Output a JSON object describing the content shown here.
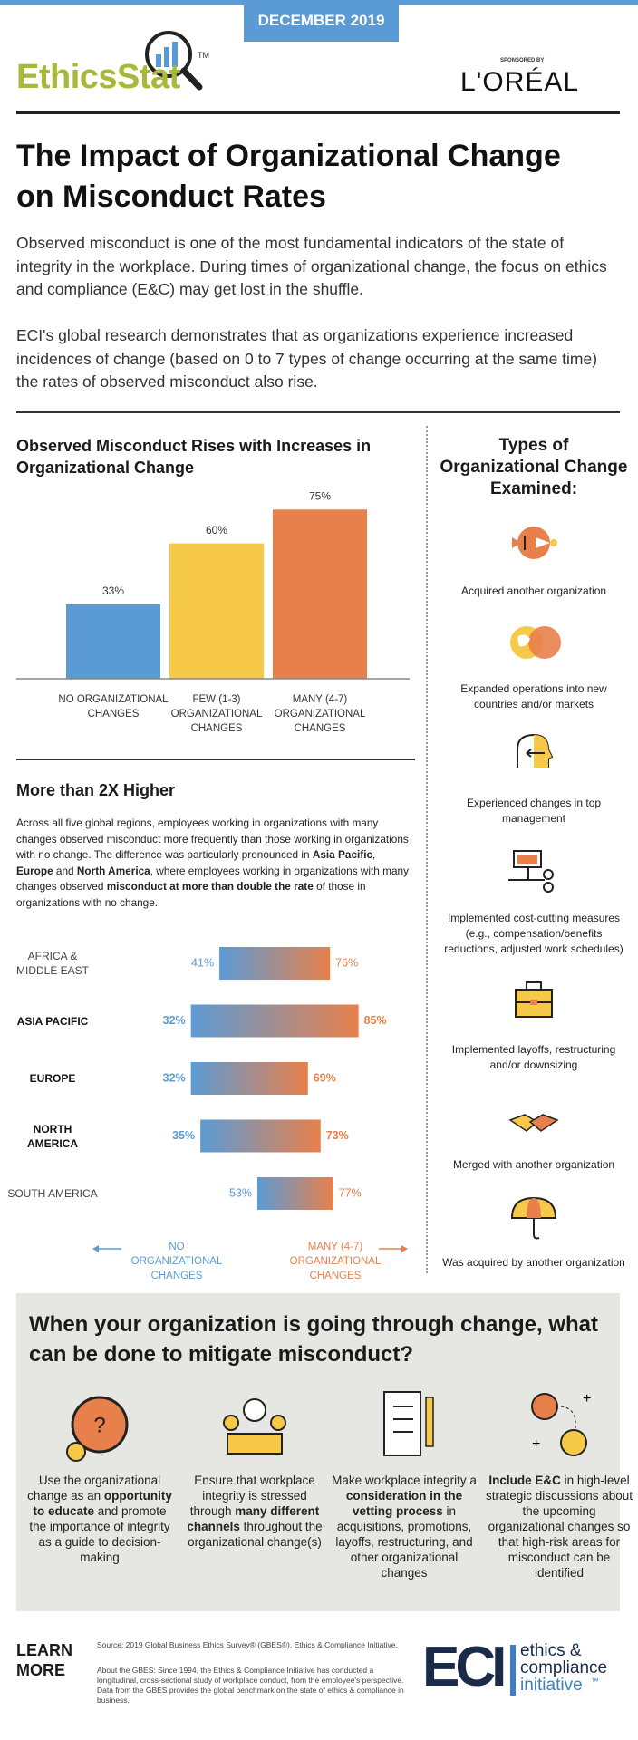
{
  "header": {
    "date": "DECEMBER 2019",
    "brand": "EthicsStat",
    "trademark": "TM",
    "sponsor_label": "SPONSORED BY",
    "sponsor": "L'ORÉAL"
  },
  "title": "The Impact of Organizational Change on Misconduct Rates",
  "intro": [
    "Observed misconduct is one of the most fundamental indicators of the state of integrity in the workplace. During times of organizational change, the focus on ethics and compliance (E&C) may get lost in the shuffle.",
    "ECI's global research demonstrates that as organizations experience increased incidences of change (based on 0 to 7 types of change occurring at the same time) the rates of observed misconduct also rise."
  ],
  "chart_data": [
    {
      "type": "bar",
      "title": "Observed Misconduct Rises with Increases in Organizational Change",
      "categories": [
        "NO ORGANIZATIONAL CHANGES",
        "FEW (1-3) ORGANIZATIONAL CHANGES",
        "MANY (4-7) ORGANIZATIONAL CHANGES"
      ],
      "values": [
        33,
        60,
        75
      ],
      "value_labels": [
        "33%",
        "60%",
        "75%"
      ],
      "colors": [
        "#5b9bd5",
        "#f7c948",
        "#e8804b"
      ],
      "ylim": [
        0,
        100
      ]
    },
    {
      "type": "range_bar",
      "title": "More than 2X Higher",
      "description": [
        {
          "text": "Across all five global regions, employees working in organizations with many changes observed misconduct more frequently than those working in organizations with no change. The difference was particularly pronounced in ",
          "bold": false
        },
        {
          "text": "Asia Pacific",
          "bold": true
        },
        {
          "text": ", ",
          "bold": false
        },
        {
          "text": "Europe",
          "bold": true
        },
        {
          "text": " and ",
          "bold": false
        },
        {
          "text": "North America",
          "bold": true
        },
        {
          "text": ", where employees working in organizations with many changes observed ",
          "bold": false
        },
        {
          "text": "misconduct at more than double the rate",
          "bold": true
        },
        {
          "text": " of those in organizations with no change.",
          "bold": false
        }
      ],
      "categories": [
        "AFRICA & MIDDLE EAST",
        "ASIA PACIFIC",
        "EUROPE",
        "NORTH AMERICA",
        "SOUTH AMERICA"
      ],
      "highlight": [
        false,
        true,
        true,
        true,
        false
      ],
      "series": [
        {
          "name": "NO ORGANIZATIONAL CHANGES",
          "color": "#5b9bd5",
          "values": [
            41,
            32,
            32,
            35,
            53
          ],
          "value_labels": [
            "41%",
            "32%",
            "32%",
            "35%",
            "53%"
          ]
        },
        {
          "name": "MANY (4-7) ORGANIZATIONAL CHANGES",
          "color": "#e8804b",
          "values": [
            76,
            85,
            69,
            73,
            77
          ],
          "value_labels": [
            "76%",
            "85%",
            "69%",
            "73%",
            "77%"
          ]
        }
      ],
      "xlim": [
        0,
        100
      ]
    }
  ],
  "types": {
    "title": "Types of Organizational Change Examined:",
    "items": [
      "Acquired another organization",
      "Expanded operations into new countries and/or markets",
      "Experienced changes in top management",
      "Implemented cost-cutting measures (e.g., compensation/benefits reductions, adjusted work schedules)",
      "Implemented layoffs, restructuring and/or downsizing",
      "Merged with another organization",
      "Was acquired by another organization"
    ]
  },
  "mitigation": {
    "title": "When your organization is going through change, what can be done to mitigate misconduct?",
    "items": [
      [
        {
          "text": "Use the organizational change as an ",
          "bold": false
        },
        {
          "text": "opportunity to educate",
          "bold": true
        },
        {
          "text": " and promote the importance of integrity as a guide to decision-making",
          "bold": false
        }
      ],
      [
        {
          "text": "Ensure that workplace integrity is stressed through ",
          "bold": false
        },
        {
          "text": "many different channels",
          "bold": true
        },
        {
          "text": " throughout the organizational change(s)",
          "bold": false
        }
      ],
      [
        {
          "text": "Make workplace integrity a ",
          "bold": false
        },
        {
          "text": "consideration in the vetting process",
          "bold": true
        },
        {
          "text": " in acquisitions, promotions, layoffs, restructuring, and other organizational changes",
          "bold": false
        }
      ],
      [
        {
          "text": "Include E&C",
          "bold": true
        },
        {
          "text": " in high-level strategic discussions about the upcoming organizational changes so that high-risk areas for misconduct can be identified",
          "bold": false
        }
      ]
    ]
  },
  "footer": {
    "cta": "LEARN MORE",
    "source": "Source: 2019 Global Business Ethics Survey® (GBES®), Ethics & Compliance Initiative.",
    "about": "About the GBES: Since 1994, the Ethics & Compliance Initiative has conducted a longitudinal, cross-sectional study of workplace conduct, from the employee's perspective. Data from the GBES provides the global benchmark on the state of ethics & compliance in business.",
    "logo": "ECI",
    "org": [
      "ethics &",
      "compliance",
      "initiative"
    ],
    "trademark": "™"
  }
}
